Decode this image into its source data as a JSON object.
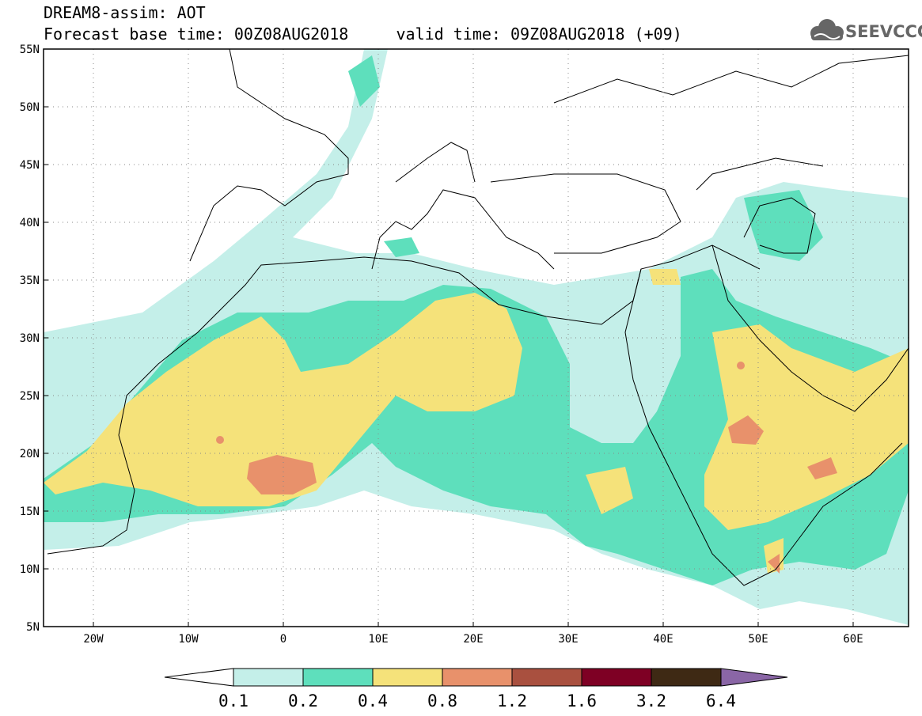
{
  "header": {
    "title": "DREAM8-assim: AOT",
    "subtitle": "Forecast base time: 00Z08AUG2018     valid time: 09Z08AUG2018 (+09)"
  },
  "logo": {
    "text": "SEEVCCC",
    "icon": "cloud-icon"
  },
  "map": {
    "lon_range": [
      -25,
      65
    ],
    "lat_range": [
      5,
      55
    ],
    "lat_ticks": [
      "55N",
      "50N",
      "45N",
      "40N",
      "35N",
      "30N",
      "25N",
      "20N",
      "15N",
      "10N",
      "5N"
    ],
    "lon_ticks": [
      "20W",
      "10W",
      "0",
      "10E",
      "20E",
      "30E",
      "40E",
      "50E",
      "60E"
    ],
    "grid": "dotted"
  },
  "colorbar": {
    "levels": [
      "0.1",
      "0.2",
      "0.4",
      "0.8",
      "1.2",
      "1.6",
      "3.2",
      "6.4"
    ],
    "colors": [
      "#ffffff",
      "#c4efe9",
      "#5edfbc",
      "#f5e27a",
      "#e8916b",
      "#a9503f",
      "#7e0024",
      "#3e2914",
      "#8a66a6"
    ]
  }
}
